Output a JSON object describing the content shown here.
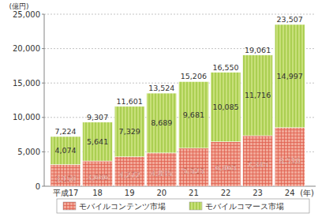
{
  "chart_data": {
    "type": "bar",
    "stacked": true,
    "grid": true,
    "data_labels": true,
    "legend": "bottom",
    "y_label": "(億円)",
    "x_label": "(年)",
    "categories": [
      "平成17",
      "18",
      "19",
      "20",
      "21",
      "22",
      "23",
      "24"
    ],
    "ylim": [
      0,
      25000
    ],
    "yticks": [
      0,
      {
        "value": 5000,
        "label": "5,000"
      },
      {
        "value": 10000,
        "label": "10,000"
      },
      {
        "value": 15000,
        "label": "15,000"
      },
      {
        "value": 20000,
        "label": "20,000"
      },
      {
        "value": 25000,
        "label": "25,000"
      }
    ],
    "series": [
      {
        "name": "モバイルコンテンツ市場",
        "color": "#f2a898",
        "values": [
          3150,
          3666,
          4272,
          4835,
          5525,
          6465,
          7345,
          8510
        ],
        "value_labels": [
          "3,150",
          "3,666",
          "4,272",
          "4,835",
          "5,525",
          "6,465",
          "7,345",
          "8,510"
        ]
      },
      {
        "name": "モバイルコマース市場",
        "color": "#c8e07a",
        "values": [
          4074,
          5641,
          7329,
          8689,
          9681,
          10085,
          11716,
          14997
        ],
        "value_labels": [
          "4,074",
          "5,641",
          "7,329",
          "8,689",
          "9,681",
          "10,085",
          "11,716",
          "14,997"
        ]
      }
    ],
    "totals": [
      7224,
      9307,
      11601,
      13524,
      15206,
      16550,
      19061,
      23507
    ],
    "total_labels": [
      "7,224",
      "9,307",
      "11,601",
      "13,524",
      "15,206",
      "16,550",
      "19,061",
      "23,507"
    ]
  }
}
